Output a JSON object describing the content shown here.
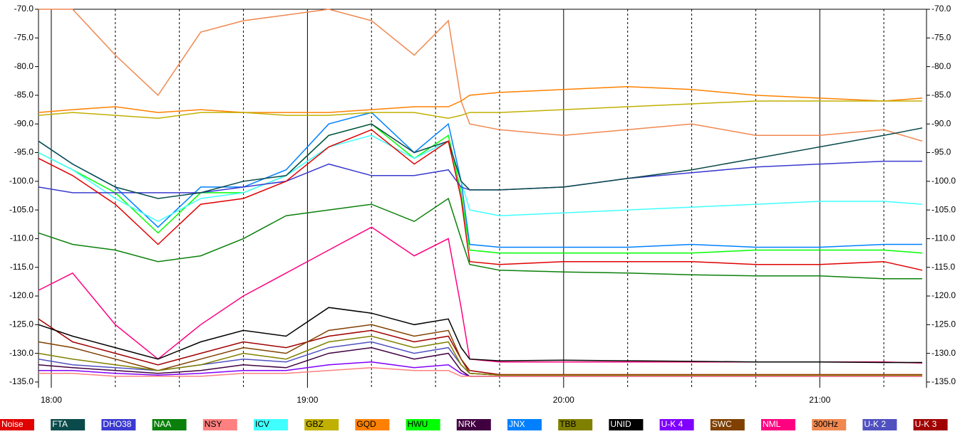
{
  "chart_data": {
    "type": "line",
    "x": [
      "17:57",
      "18:05",
      "18:15",
      "18:25",
      "18:35",
      "18:45",
      "18:55",
      "19:05",
      "19:15",
      "19:25",
      "19:33",
      "19:36",
      "19:38",
      "19:45",
      "20:00",
      "20:15",
      "20:30",
      "20:45",
      "21:00",
      "21:15",
      "21:24"
    ],
    "xlim": [
      "17:57",
      "21:25"
    ],
    "xticks": [
      "18:00",
      "19:00",
      "20:00",
      "21:00"
    ],
    "xminor": [
      "18:15",
      "18:30",
      "18:45",
      "19:15",
      "19:30",
      "19:45",
      "20:15",
      "20:30",
      "20:45",
      "21:15"
    ],
    "ylim": [
      -70,
      -136
    ],
    "yticks": [
      {
        "value": -70,
        "label": "-70.0"
      },
      {
        "value": -75,
        "label": "-75.0"
      },
      {
        "value": -80,
        "label": "-80.0"
      },
      {
        "value": -85,
        "label": "-85.0"
      },
      {
        "value": -90,
        "label": "-90.0"
      },
      {
        "value": -95,
        "label": "-95.0"
      },
      {
        "value": -100,
        "label": "-100.0"
      },
      {
        "value": -105,
        "label": "-105.0"
      },
      {
        "value": -110,
        "label": "-110.0"
      },
      {
        "value": -115,
        "label": "-115.0"
      },
      {
        "value": -120,
        "label": "-120.0"
      },
      {
        "value": -125,
        "label": "-125.0"
      },
      {
        "value": -130,
        "label": "-130.0"
      },
      {
        "value": -135,
        "label": "-135.0"
      }
    ],
    "grid": true,
    "series": [
      {
        "name": "Noise",
        "color": "#e00000",
        "values": [
          -96,
          -99,
          -104,
          -111,
          -104,
          -103,
          -100,
          -94,
          -91,
          -97,
          -93,
          -103,
          -114,
          -114.5,
          -114,
          -114,
          -114,
          -114.5,
          -114.5,
          -114,
          -115.5
        ]
      },
      {
        "name": "FTA",
        "color": "#0a4a4a",
        "values": [
          -93,
          -97,
          -101,
          -103,
          -102,
          -100,
          -99,
          -92,
          -90,
          -95,
          -93,
          -100,
          -101.5,
          -101.5,
          -101,
          -99.5,
          -98,
          -96,
          -94,
          -92,
          -90.7
        ]
      },
      {
        "name": "DHO38",
        "color": "#3a3ad0",
        "values": [
          -101,
          -102,
          -102,
          -102,
          -102,
          -101,
          -100,
          -97,
          -99,
          -99,
          -98,
          -101,
          -101.5,
          -101.5,
          -101,
          -99.5,
          -98.5,
          -97.5,
          -97,
          -96.5,
          -96.5
        ]
      },
      {
        "name": "NAA",
        "color": "#0a800a",
        "values": [
          -109,
          -111,
          -112,
          -114,
          -113,
          -110,
          -106,
          -105,
          -104,
          -107,
          -103,
          -110,
          -114.5,
          -115.5,
          -115.8,
          -116,
          -116.3,
          -116.5,
          -116.5,
          -117,
          -117
        ]
      },
      {
        "name": "NSY",
        "color": "#ff8080",
        "values": [
          -133.5,
          -133.5,
          -134,
          -134,
          -134,
          -133.5,
          -133.5,
          -133,
          -132.5,
          -133,
          -133,
          -134,
          -134,
          -134,
          -134,
          -134,
          -134,
          -134,
          -134,
          -134,
          -134
        ]
      },
      {
        "name": "ICV",
        "color": "#40ffff",
        "values": [
          -95,
          -98,
          -103,
          -107,
          -103,
          -102,
          -99,
          -94,
          -92,
          -96,
          -93,
          -100,
          -105,
          -106,
          -105.5,
          -105,
          -104.5,
          -104,
          -103.5,
          -103.5,
          -104
        ]
      },
      {
        "name": "GBZ",
        "color": "#c0b000",
        "values": [
          -88.5,
          -88,
          -88.5,
          -89,
          -88,
          -88,
          -88.5,
          -88.5,
          -88,
          -88,
          -89,
          -88.5,
          -88,
          -88,
          -87.5,
          -87,
          -86.5,
          -86,
          -86,
          -86,
          -86
        ]
      },
      {
        "name": "GQD",
        "color": "#ff8000",
        "values": [
          -88,
          -87.5,
          -87,
          -88,
          -87.5,
          -88,
          -88,
          -88,
          -87.5,
          -87,
          -87,
          -86,
          -85,
          -84.5,
          -84,
          -83.5,
          -84,
          -85,
          -85.5,
          -86,
          -85.5
        ]
      },
      {
        "name": "HWU",
        "color": "#00ff00",
        "values": [
          -95,
          -98,
          -102,
          -109,
          -102,
          -102,
          -99,
          -92,
          -90,
          -96,
          -92,
          -102,
          -112,
          -112.5,
          -112.5,
          -112.5,
          -112.5,
          -112,
          -112,
          -112,
          -112.5
        ]
      },
      {
        "name": "NRK",
        "color": "#400040",
        "values": [
          -132,
          -132.5,
          -133,
          -133.5,
          -133,
          -132,
          -132.5,
          -130,
          -129,
          -131,
          -130,
          -133,
          -134,
          -134,
          -134,
          -134,
          -134,
          -134,
          -134,
          -134,
          -134
        ]
      },
      {
        "name": "JNX",
        "color": "#0080ff",
        "values": [
          -93,
          -97,
          -101,
          -108,
          -101,
          -101,
          -98,
          -90,
          -88,
          -95,
          -90,
          -100,
          -111,
          -111.5,
          -111.5,
          -111.5,
          -111,
          -111.5,
          -111.5,
          -111,
          -111
        ]
      },
      {
        "name": "TBB",
        "color": "#808000",
        "values": [
          -130,
          -131,
          -132,
          -133,
          -132,
          -130,
          -131,
          -128,
          -127,
          -129,
          -128,
          -132,
          -133.5,
          -133.8,
          -133.8,
          -133.8,
          -133.8,
          -133.8,
          -133.8,
          -133.8,
          -133.8
        ]
      },
      {
        "name": "UNID",
        "color": "#000000",
        "values": [
          -125,
          -127,
          -129,
          -131,
          -128,
          -126,
          -127,
          -122,
          -123,
          -125,
          -124,
          -129,
          -131,
          -131.3,
          -131.2,
          -131.3,
          -131.4,
          -131.5,
          -131.5,
          -131.6,
          -131.6
        ]
      },
      {
        "name": "U-K 4",
        "color": "#8000ff",
        "values": [
          -133,
          -133,
          -133.5,
          -133.8,
          -133.5,
          -133,
          -133,
          -132,
          -131.5,
          -132.5,
          -132,
          -133.5,
          -134,
          -134,
          -134,
          -134,
          -134,
          -134,
          -134,
          -134,
          -134
        ]
      },
      {
        "name": "SWC",
        "color": "#804000",
        "values": [
          -128,
          -129,
          -131,
          -133,
          -131,
          -129,
          -130,
          -126,
          -125,
          -127,
          -126,
          -131,
          -133.5,
          -133.8,
          -133.8,
          -133.8,
          -133.8,
          -133.8,
          -133.8,
          -133.8,
          -133.8
        ]
      },
      {
        "name": "NML",
        "color": "#ff0080",
        "values": [
          -119,
          -116,
          -125,
          -131,
          -125,
          -120,
          -116,
          -112,
          -108,
          -113,
          -110,
          -122,
          -131,
          -131.5,
          -131.5,
          -131.5,
          -131.5,
          -131.5,
          -131.5,
          -131.5,
          -131.7
        ]
      },
      {
        "name": "300Hz",
        "color": "#f08850",
        "values": [
          -70,
          -70,
          -78,
          -85,
          -74,
          -72,
          -71,
          -70,
          -72,
          -78,
          -72,
          -86,
          -90,
          -91,
          -92,
          -91,
          -90,
          -92,
          -92,
          -91,
          -93
        ]
      },
      {
        "name": "U-K 2",
        "color": "#5050c0",
        "values": [
          -131,
          -132,
          -132.5,
          -133,
          -132,
          -131,
          -131.5,
          -129,
          -128,
          -130,
          -129,
          -132,
          -133.5,
          -133.8,
          -133.8,
          -133.8,
          -133.8,
          -133.8,
          -133.8,
          -133.8,
          -133.8
        ]
      },
      {
        "name": "U-K 3",
        "color": "#a00000",
        "values": [
          -124,
          -128,
          -130,
          -132,
          -130,
          -128,
          -129,
          -127,
          -126,
          -128,
          -127,
          -131,
          -133,
          -133.7,
          -133.7,
          -133.7,
          -133.7,
          -133.7,
          -133.7,
          -133.7,
          -133.7
        ]
      }
    ]
  }
}
